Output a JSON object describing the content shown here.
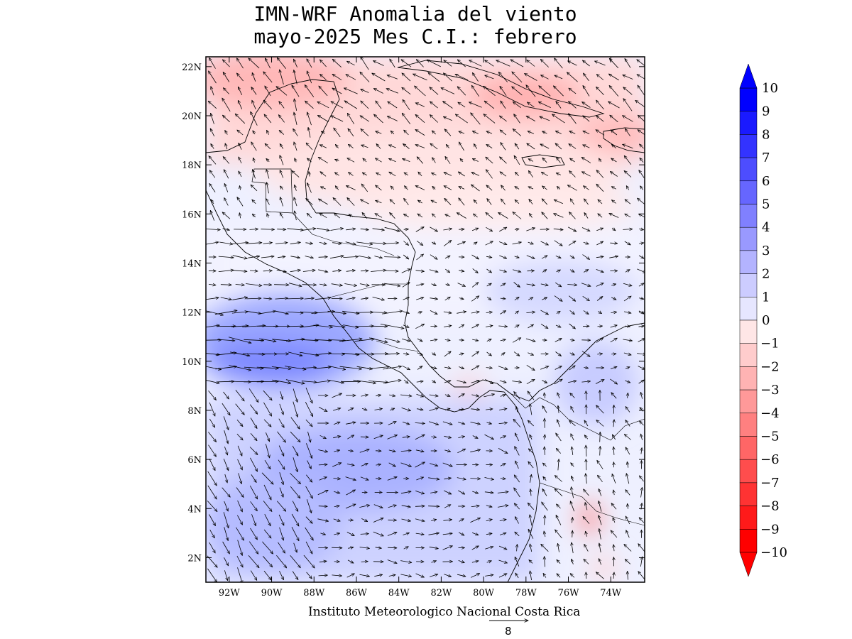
{
  "title": {
    "line1": "IMN-WRF Anomalia del viento",
    "line2": "mayo-2025 Mes C.I.: febrero"
  },
  "credit": "Instituto Meteorologico Nacional Costa Rica",
  "reference_vector": {
    "label": "8",
    "magnitude": 8
  },
  "map": {
    "lon_range": [
      -93.1,
      -72.4
    ],
    "lat_range": [
      1.0,
      22.4
    ],
    "lat_ticks": [
      "22N",
      "20N",
      "18N",
      "16N",
      "14N",
      "12N",
      "10N",
      "8N",
      "6N",
      "4N",
      "2N"
    ],
    "lon_ticks": [
      "92W",
      "90W",
      "88W",
      "86W",
      "84W",
      "82W",
      "80W",
      "78W",
      "76W",
      "74W"
    ],
    "coastlines": "Central America, Caribbean islands (Cuba, Jamaica, Hispaniola), northern South America"
  },
  "colorbar": {
    "labels": [
      "10",
      "9",
      "8",
      "7",
      "6",
      "5",
      "4",
      "3",
      "2",
      "1",
      "0",
      "−1",
      "−2",
      "−3",
      "−4",
      "−5",
      "−6",
      "−7",
      "−8",
      "−9",
      "−10"
    ],
    "colors_positive": [
      "#0000ff",
      "#1a1aff",
      "#3333ff",
      "#4d4dff",
      "#6666ff",
      "#8080ff",
      "#9999ff",
      "#b3b3ff",
      "#ccccff",
      "#e6e6ff"
    ],
    "colors_negative": [
      "#ffe6e6",
      "#ffcccc",
      "#ffb3b3",
      "#ff9999",
      "#ff8080",
      "#ff6666",
      "#ff4d4d",
      "#ff3333",
      "#ff1a1a",
      "#ff0000"
    ]
  }
}
